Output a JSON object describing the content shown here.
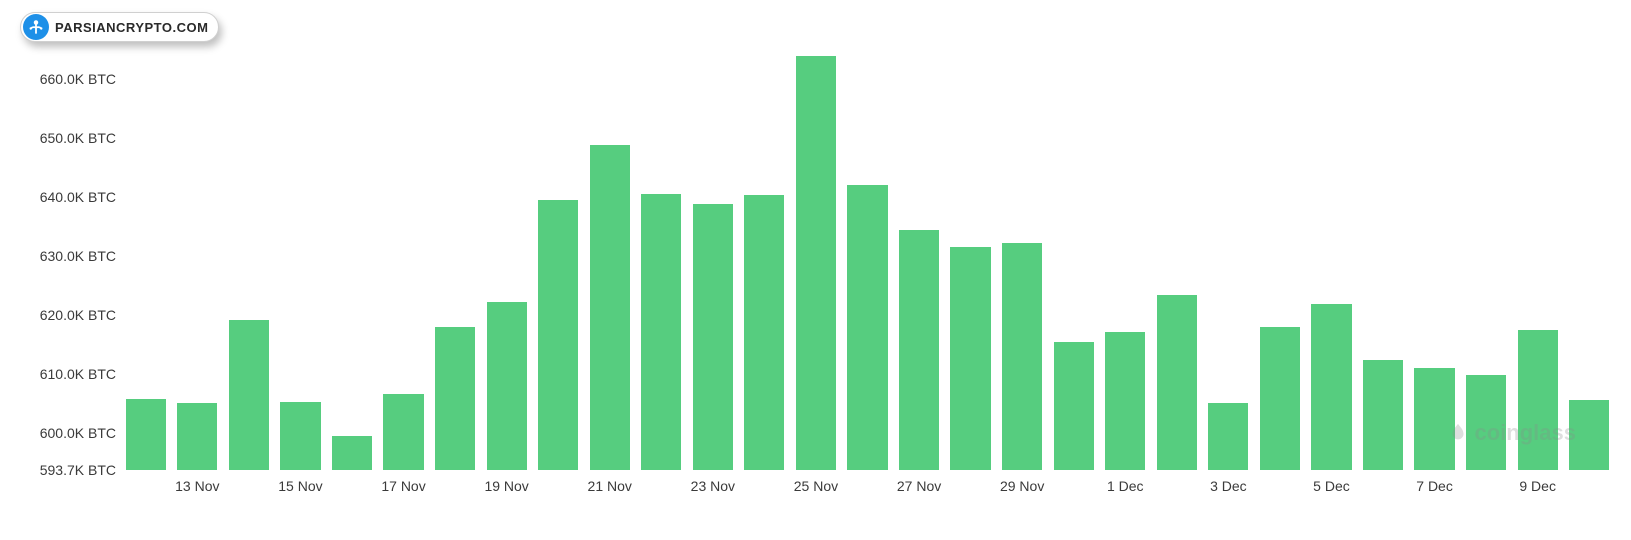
{
  "badge": {
    "text": "PARSIANCRYPTO.COM",
    "icon_bg": "#1e90e8",
    "icon_fg": "#ffffff",
    "border_color": "#d0d0d0",
    "bg": "#ffffff",
    "text_color": "#2a2a2a"
  },
  "watermark": {
    "text": "coinglass",
    "color": "#8a8a8a",
    "opacity": 0.28
  },
  "chart": {
    "type": "bar",
    "background_color": "#ffffff",
    "bar_color": "#56cd7f",
    "axis_text_color": "#3a3a3a",
    "axis_fontsize": 14,
    "ylim": [
      593.7,
      665.0
    ],
    "y_ticks": [
      {
        "value": 593.7,
        "label": "593.7K BTC"
      },
      {
        "value": 600.0,
        "label": "600.0K BTC"
      },
      {
        "value": 610.0,
        "label": "610.0K BTC"
      },
      {
        "value": 620.0,
        "label": "620.0K BTC"
      },
      {
        "value": 630.0,
        "label": "630.0K BTC"
      },
      {
        "value": 640.0,
        "label": "640.0K BTC"
      },
      {
        "value": 650.0,
        "label": "650.0K BTC"
      },
      {
        "value": 660.0,
        "label": "660.0K BTC"
      }
    ],
    "x_tick_labels": [
      "13 Nov",
      "15 Nov",
      "17 Nov",
      "19 Nov",
      "21 Nov",
      "23 Nov",
      "25 Nov",
      "27 Nov",
      "29 Nov",
      "1 Dec",
      "3 Dec",
      "5 Dec",
      "7 Dec",
      "9 Dec"
    ],
    "x_tick_bar_indices": [
      1,
      3,
      5,
      7,
      9,
      11,
      13,
      15,
      17,
      19,
      21,
      23,
      25,
      27
    ],
    "bar_width_ratio": 0.78,
    "values": [
      605.8,
      605.0,
      619.2,
      605.3,
      599.4,
      606.6,
      617.9,
      622.2,
      639.6,
      648.8,
      640.6,
      638.8,
      640.4,
      664.0,
      642.0,
      634.4,
      631.6,
      632.2,
      615.4,
      617.2,
      623.4,
      605.0,
      618.0,
      621.8,
      612.4,
      611.0,
      609.8,
      617.4,
      605.6
    ]
  }
}
